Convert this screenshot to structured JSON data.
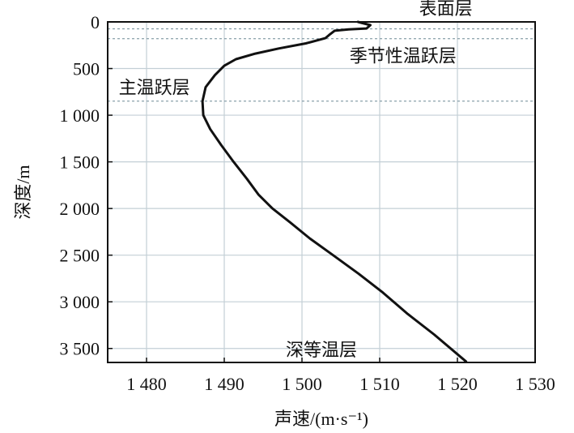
{
  "chart_data": {
    "type": "line",
    "xlabel": "声速/(m·s⁻¹)",
    "ylabel": "深度/m",
    "xlim": [
      1475,
      1530
    ],
    "ylim": [
      0,
      3650
    ],
    "y_inverted": true,
    "grid": true,
    "x_ticks": [
      {
        "value": 1480,
        "label": "1 480"
      },
      {
        "value": 1490,
        "label": "1 490"
      },
      {
        "value": 1500,
        "label": "1 500"
      },
      {
        "value": 1510,
        "label": "1 510"
      },
      {
        "value": 1520,
        "label": "1 520"
      },
      {
        "value": 1530,
        "label": "1 530"
      }
    ],
    "y_ticks": [
      {
        "value": 0,
        "label": "0"
      },
      {
        "value": 500,
        "label": "500"
      },
      {
        "value": 1000,
        "label": "1 000"
      },
      {
        "value": 1500,
        "label": "1 500"
      },
      {
        "value": 2000,
        "label": "2 000"
      },
      {
        "value": 2500,
        "label": "2 500"
      },
      {
        "value": 3000,
        "label": "3 000"
      },
      {
        "value": 3500,
        "label": "3 500"
      }
    ],
    "layer_boundaries": [
      75,
      180,
      850
    ],
    "series": [
      {
        "color": "#111111",
        "points": [
          [
            1507.2,
            0
          ],
          [
            1508.8,
            35
          ],
          [
            1508.3,
            70
          ],
          [
            1506.0,
            80
          ],
          [
            1504.2,
            95
          ],
          [
            1503.5,
            140
          ],
          [
            1503.0,
            175
          ],
          [
            1500.5,
            230
          ],
          [
            1497.0,
            285
          ],
          [
            1494.0,
            340
          ],
          [
            1491.5,
            400
          ],
          [
            1490.0,
            470
          ],
          [
            1488.8,
            570
          ],
          [
            1487.6,
            700
          ],
          [
            1487.2,
            850
          ],
          [
            1487.3,
            1000
          ],
          [
            1488.2,
            1150
          ],
          [
            1489.6,
            1320
          ],
          [
            1491.2,
            1500
          ],
          [
            1492.9,
            1680
          ],
          [
            1494.4,
            1850
          ],
          [
            1496.2,
            2000
          ],
          [
            1498.5,
            2150
          ],
          [
            1501.0,
            2320
          ],
          [
            1504.0,
            2500
          ],
          [
            1507.3,
            2700
          ],
          [
            1510.4,
            2900
          ],
          [
            1513.6,
            3130
          ],
          [
            1517.0,
            3350
          ],
          [
            1521.1,
            3640
          ]
        ]
      }
    ],
    "annotations": [
      {
        "text": "表面层",
        "x": 1518.5,
        "y": -150
      },
      {
        "text": "季节性温跃层",
        "x": 1513.0,
        "y": 360
      },
      {
        "text": "主温跃层",
        "x": 1481.0,
        "y": 700
      },
      {
        "text": "深等温层",
        "x": 1502.5,
        "y": 3510
      }
    ]
  }
}
